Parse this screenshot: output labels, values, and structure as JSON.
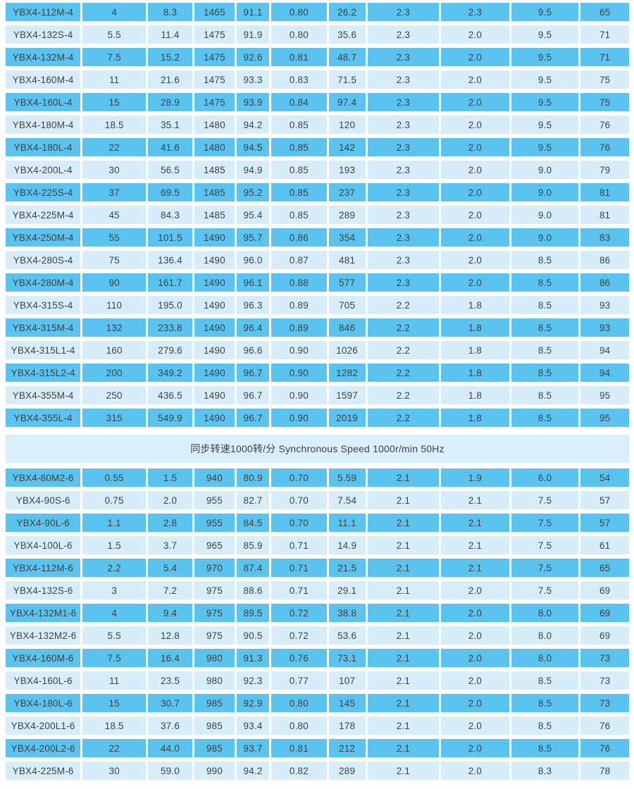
{
  "colors": {
    "page_background": "#ffffff",
    "row_dark": "#5ac3ef",
    "row_light": "#d7eefa",
    "header_band": "#d9effb",
    "text": "#414141"
  },
  "table": {
    "column_weights": [
      110,
      93,
      65,
      59,
      48,
      81,
      54,
      105,
      100,
      99,
      71
    ],
    "sections": [
      {
        "header": null,
        "rows": [
          [
            "YBX4-112M-4",
            "4",
            "8.3",
            "1465",
            "91.1",
            "0.80",
            "26.2",
            "2.3",
            "2.3",
            "9.5",
            "65"
          ],
          [
            "YBX4-132S-4",
            "5.5",
            "11.4",
            "1475",
            "91.9",
            "0.80",
            "35.6",
            "2.3",
            "2.0",
            "9.5",
            "71"
          ],
          [
            "YBX4-132M-4",
            "7.5",
            "15.2",
            "1475",
            "92.6",
            "0.81",
            "48.7",
            "2.3",
            "2.0",
            "9.5",
            "71"
          ],
          [
            "YBX4-160M-4",
            "11",
            "21.6",
            "1475",
            "93.3",
            "0.83",
            "71.5",
            "2.3",
            "2.0",
            "9.5",
            "75"
          ],
          [
            "YBX4-160L-4",
            "15",
            "28.9",
            "1475",
            "93.9",
            "0.84",
            "97.4",
            "2.3",
            "2.0",
            "9.5",
            "75"
          ],
          [
            "YBX4-180M-4",
            "18.5",
            "35.1",
            "1480",
            "94.2",
            "0.85",
            "120",
            "2.3",
            "2.0",
            "9.5",
            "76"
          ],
          [
            "YBX4-180L-4",
            "22",
            "41.6",
            "1480",
            "94.5",
            "0.85",
            "142",
            "2.3",
            "2.0",
            "9.5",
            "76"
          ],
          [
            "YBX4-200L-4",
            "30",
            "56.5",
            "1485",
            "94.9",
            "0.85",
            "193",
            "2.3",
            "2.0",
            "9.0",
            "79"
          ],
          [
            "YBX4-225S-4",
            "37",
            "69.5",
            "1485",
            "95.2",
            "0.85",
            "237",
            "2.3",
            "2.0",
            "9.0",
            "81"
          ],
          [
            "YBX4-225M-4",
            "45",
            "84.3",
            "1485",
            "95.4",
            "0.85",
            "289",
            "2.3",
            "2.0",
            "9.0",
            "81"
          ],
          [
            "YBX4-250M-4",
            "55",
            "101.5",
            "1490",
            "95.7",
            "0.86",
            "354",
            "2.3",
            "2.0",
            "9.0",
            "83"
          ],
          [
            "YBX4-280S-4",
            "75",
            "136.4",
            "1490",
            "96.0",
            "0.87",
            "481",
            "2.3",
            "2.0",
            "8.5",
            "86"
          ],
          [
            "YBX4-280M-4",
            "90",
            "161.7",
            "1490",
            "96.1",
            "0.88",
            "577",
            "2.3",
            "2.0",
            "8.5",
            "86"
          ],
          [
            "YBX4-315S-4",
            "110",
            "195.0",
            "1490",
            "96.3",
            "0.89",
            "705",
            "2.2",
            "1.8",
            "8.5",
            "93"
          ],
          [
            "YBX4-315M-4",
            "132",
            "233.8",
            "1490",
            "96.4",
            "0.89",
            "846",
            "2.2",
            "1.8",
            "8.5",
            "93"
          ],
          [
            "YBX4-315L1-4",
            "160",
            "279.6",
            "1490",
            "96.6",
            "0.90",
            "1026",
            "2.2",
            "1.8",
            "8.5",
            "94"
          ],
          [
            "YBX4-315L2-4",
            "200",
            "349.2",
            "1490",
            "96.7",
            "0.90",
            "1282",
            "2.2",
            "1.8",
            "8.5",
            "94"
          ],
          [
            "YBX4-355M-4",
            "250",
            "436.5",
            "1490",
            "96.7",
            "0.90",
            "1597",
            "2.2",
            "1.8",
            "8.5",
            "95"
          ],
          [
            "YBX4-355L-4",
            "315",
            "549.9",
            "1490",
            "96.7",
            "0.90",
            "2019",
            "2.2",
            "1.8",
            "8.5",
            "95"
          ]
        ]
      },
      {
        "header": "同步转速1000转/分 Synchronous Speed 1000r/min 50Hz",
        "rows": [
          [
            "YBX4-80M2-6",
            "0.55",
            "1.5",
            "940",
            "80.9",
            "0.70",
            "5.59",
            "2.1",
            "1.9",
            "6.0",
            "54"
          ],
          [
            "YBX4-90S-6",
            "0.75",
            "2.0",
            "955",
            "82.7",
            "0.70",
            "7.54",
            "2.1",
            "2.1",
            "7.5",
            "57"
          ],
          [
            "YBX4-90L-6",
            "1.1",
            "2.8",
            "955",
            "84.5",
            "0.70",
            "11.1",
            "2.1",
            "2.1",
            "7.5",
            "57"
          ],
          [
            "YBX4-100L-6",
            "1.5",
            "3.7",
            "965",
            "85.9",
            "0.71",
            "14.9",
            "2.1",
            "2.1",
            "7.5",
            "61"
          ],
          [
            "YBX4-112M-6",
            "2.2",
            "5.4",
            "970",
            "87.4",
            "0.71",
            "21.5",
            "2.1",
            "2.1",
            "7.5",
            "65"
          ],
          [
            "YBX4-132S-6",
            "3",
            "7.2",
            "975",
            "88.6",
            "0.71",
            "29.1",
            "2.1",
            "2.0",
            "7.5",
            "69"
          ],
          [
            "YBX4-132M1-6",
            "4",
            "9.4",
            "975",
            "89.5",
            "0.72",
            "38.8",
            "2.1",
            "2.0",
            "8.0",
            "69"
          ],
          [
            "YBX4-132M2-6",
            "5.5",
            "12.8",
            "975",
            "90.5",
            "0.72",
            "53.6",
            "2.1",
            "2.0",
            "8.0",
            "69"
          ],
          [
            "YBX4-160M-6",
            "7.5",
            "16.4",
            "980",
            "91.3",
            "0.76",
            "73.1",
            "2.1",
            "2.0",
            "8.0",
            "73"
          ],
          [
            "YBX4-160L-6",
            "11",
            "23.5",
            "980",
            "92.3",
            "0.77",
            "107",
            "2.1",
            "2.0",
            "8.5",
            "73"
          ],
          [
            "YBX4-180L-6",
            "15",
            "30.7",
            "985",
            "92.9",
            "0.80",
            "145",
            "2.1",
            "2.0",
            "8.5",
            "73"
          ],
          [
            "YBX4-200L1-6",
            "18.5",
            "37.6",
            "985",
            "93.4",
            "0.80",
            "178",
            "2.1",
            "2.0",
            "8.5",
            "76"
          ],
          [
            "YBX4-200L2-6",
            "22",
            "44.0",
            "985",
            "93.7",
            "0.81",
            "212",
            "2.1",
            "2.0",
            "8.5",
            "76"
          ],
          [
            "YBX4-225M-6",
            "30",
            "59.0",
            "990",
            "94.2",
            "0.82",
            "289",
            "2.1",
            "2.0",
            "8.3",
            "78"
          ]
        ]
      }
    ]
  }
}
